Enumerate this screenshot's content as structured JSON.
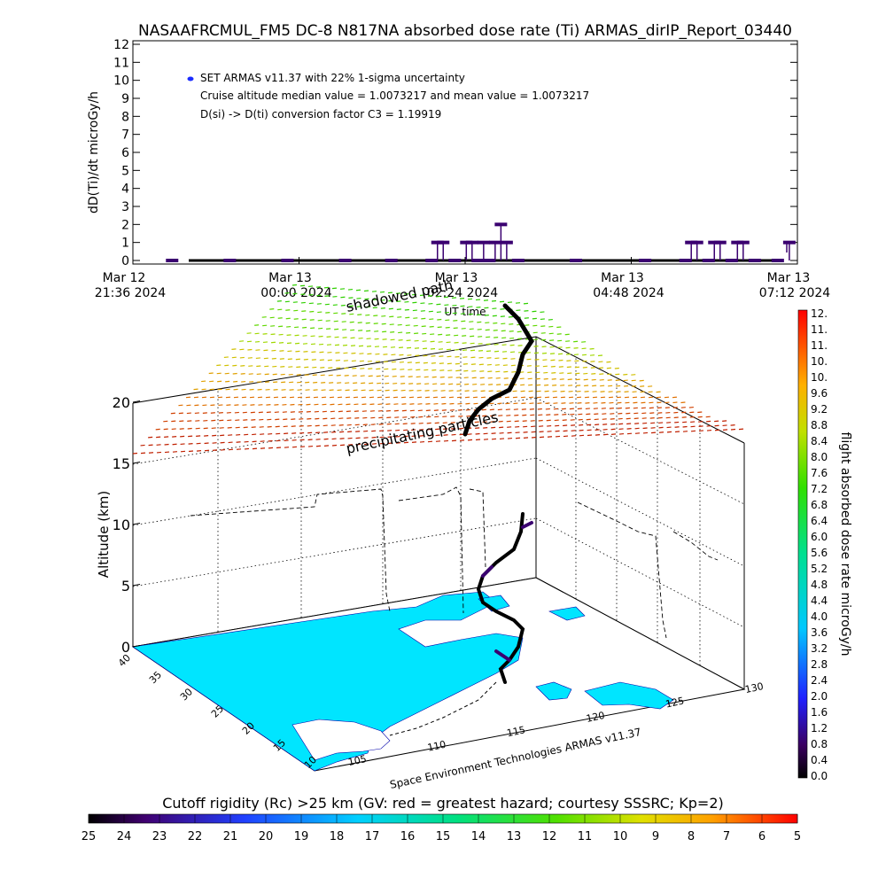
{
  "title": "NASAAFRCMUL_FM5 DC-8   N817NA absorbed dose rate (Ti) ARMAS_dirIP_Report_03440",
  "top_chart": {
    "ylabel": "dD(Ti)/dt microGy/h",
    "xlabel": "UT time",
    "legend_lines": [
      "SET ARMAS v11.37 with 22% 1-sigma uncertainty",
      "Cruise altitude median value = 1.0073217 and mean value = 1.0073217",
      "D(si) -> D(ti) conversion factor C3 = 1.19919"
    ],
    "legend_marker_color": "#1a2cff",
    "marker_color": "#3a0070",
    "y_ticks": [
      "0",
      "1",
      "2",
      "3",
      "4",
      "5",
      "6",
      "7",
      "8",
      "9",
      "10",
      "11",
      "12"
    ],
    "x_ticks": [
      {
        "line1": "Mar 12",
        "line2": "21:36 2024"
      },
      {
        "line1": "Mar 13",
        "line2": "00:00 2024"
      },
      {
        "line1": "Mar 13",
        "line2": "02:24 2024"
      },
      {
        "line1": "Mar 13",
        "line2": "04:48 2024"
      },
      {
        "line1": "Mar 13",
        "line2": "07:12 2024"
      }
    ]
  },
  "chart_data": [
    {
      "type": "scatter",
      "title": "NASAAFRCMUL_FM5 DC-8   N817NA absorbed dose rate (Ti) ARMAS_dirIP_Report_03440",
      "xlabel": "UT time",
      "ylabel": "dD(Ti)/dt microGy/h",
      "ylim": [
        0,
        12
      ],
      "xlim": [
        "2024-03-12 21:36",
        "2024-03-13 07:12"
      ],
      "series": [
        {
          "name": "SET ARMAS v11.37 with 22% 1-sigma uncertainty",
          "x": [
            "2024-03-12 22:10",
            "2024-03-12 23:00",
            "2024-03-12 23:50",
            "2024-03-13 00:40",
            "2024-03-13 01:20",
            "2024-03-13 01:55",
            "2024-03-13 02:00",
            "2024-03-13 02:05",
            "2024-03-13 02:15",
            "2024-03-13 02:25",
            "2024-03-13 02:30",
            "2024-03-13 02:35",
            "2024-03-13 02:40",
            "2024-03-13 02:45",
            "2024-03-13 02:50",
            "2024-03-13 02:55",
            "2024-03-13 03:00",
            "2024-03-13 03:10",
            "2024-03-13 04:00",
            "2024-03-13 05:00",
            "2024-03-13 05:35",
            "2024-03-13 05:40",
            "2024-03-13 05:45",
            "2024-03-13 05:55",
            "2024-03-13 06:00",
            "2024-03-13 06:05",
            "2024-03-13 06:15",
            "2024-03-13 06:20",
            "2024-03-13 06:25",
            "2024-03-13 06:35",
            "2024-03-13 06:55",
            "2024-03-13 07:05"
          ],
          "y": [
            0,
            0,
            0,
            0,
            0,
            0,
            1,
            1,
            0,
            1,
            1,
            0,
            1,
            0,
            1,
            2,
            1,
            0,
            0,
            0,
            0,
            1,
            1,
            0,
            1,
            1,
            0,
            1,
            1,
            0,
            0,
            1
          ]
        }
      ]
    },
    {
      "type": "scatter",
      "title": "",
      "xlabel": "",
      "ylabel": "Altitude (km)",
      "zlim": [
        0,
        20
      ],
      "z_ticks": [
        "0",
        "5",
        "10",
        "15",
        "20"
      ],
      "lon_ticks": [
        "105",
        "110",
        "115",
        "120",
        "125",
        "130"
      ],
      "lat_ticks": [
        "10",
        "15",
        "20",
        "25",
        "30",
        "35",
        "40"
      ],
      "annotations": [
        "shadowed path",
        "precipitating particles"
      ],
      "footer": "Space Environment Technologies ARMAS v11.37"
    }
  ],
  "colorbar_right": {
    "label": "flight absorbed dose rate microGy/h",
    "ticks": [
      "0.0",
      "0.4",
      "0.8",
      "1.2",
      "1.6",
      "2.0",
      "2.4",
      "2.8",
      "3.2",
      "3.6",
      "4.0",
      "4.4",
      "4.8",
      "5.2",
      "5.6",
      "6.0",
      "6.4",
      "6.8",
      "7.2",
      "7.6",
      "8.0",
      "8.4",
      "8.8",
      "9.2",
      "9.6",
      "10.",
      "10.",
      "11.",
      "11.",
      "12."
    ]
  },
  "colorbar_bottom": {
    "label": "Cutoff rigidity (Rc) >25 km (GV: red = greatest hazard; courtesy SSSRC; Kp=2)",
    "ticks": [
      "25",
      "24",
      "23",
      "22",
      "21",
      "20",
      "19",
      "18",
      "17",
      "16",
      "15",
      "14",
      "13",
      "12",
      "11",
      "10",
      "9",
      "8",
      "7",
      "6",
      "5"
    ]
  },
  "colors": {
    "land": "#00e5ff",
    "track": "#000000",
    "axes": "#000000"
  }
}
